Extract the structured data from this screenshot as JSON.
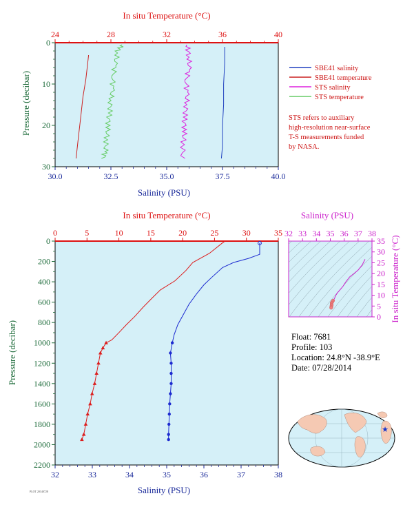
{
  "chart_data": [
    {
      "type": "line",
      "top_axis_label": "In situ Temperature (°C)",
      "bottom_axis_label": "Salinity (PSU)",
      "ylabel": "Pressure (decibar)",
      "temperature_ticks": [
        "24",
        "28",
        "32",
        "36",
        "40"
      ],
      "salinity_ticks": [
        "30.0",
        "32.5",
        "35.0",
        "37.5",
        "40.0"
      ],
      "pressure_ticks": [
        "0",
        "10",
        "20",
        "30"
      ],
      "temp_range": [
        24,
        40
      ],
      "sal_range": [
        30,
        40
      ],
      "pressure_range": [
        0,
        30
      ],
      "legend": [
        {
          "name": "SBE41 salinity",
          "color": "#1f3fbf"
        },
        {
          "name": "SBE41 temperature",
          "color": "#cc2020"
        },
        {
          "name": "STS salinity",
          "color": "#dd22dd"
        },
        {
          "name": "STS temperature",
          "color": "#66cc66"
        }
      ],
      "note": [
        "STS refers to auxiliary",
        "high-resolution near-surface",
        "T-S measurements funded",
        "by NASA."
      ],
      "series": [
        {
          "name": "SBE41 temperature",
          "axis": "temperature",
          "points": [
            [
              26.4,
              3
            ],
            [
              26.3,
              6
            ],
            [
              26.2,
              9
            ],
            [
              26.1,
              11
            ],
            [
              26.0,
              13
            ],
            [
              25.9,
              16
            ],
            [
              25.8,
              19
            ],
            [
              25.7,
              22
            ],
            [
              25.6,
              25
            ],
            [
              25.5,
              28
            ]
          ]
        },
        {
          "name": "SBE41 salinity",
          "axis": "salinity",
          "points": [
            [
              37.6,
              1
            ],
            [
              37.6,
              5
            ],
            [
              37.55,
              10
            ],
            [
              37.55,
              15
            ],
            [
              37.5,
              20
            ],
            [
              37.5,
              25
            ],
            [
              37.45,
              28
            ]
          ]
        },
        {
          "name": "STS temperature",
          "axis": "temperature",
          "points": [
            [
              28.8,
              0.5
            ],
            [
              28.5,
              2
            ],
            [
              28.3,
              5
            ],
            [
              28.2,
              8
            ],
            [
              28.1,
              11
            ],
            [
              28.0,
              14
            ],
            [
              27.9,
              17
            ],
            [
              27.8,
              20
            ],
            [
              27.7,
              23
            ],
            [
              27.6,
              26
            ],
            [
              27.5,
              28
            ]
          ]
        },
        {
          "name": "STS salinity",
          "axis": "salinity",
          "points": [
            [
              35.9,
              0.5
            ],
            [
              36.0,
              3
            ],
            [
              36.0,
              6
            ],
            [
              35.9,
              9
            ],
            [
              35.9,
              12
            ],
            [
              35.9,
              15
            ],
            [
              35.8,
              18
            ],
            [
              35.8,
              21
            ],
            [
              35.75,
              24
            ],
            [
              35.7,
              28
            ]
          ]
        }
      ]
    },
    {
      "type": "line",
      "top_axis_label": "In situ Temperature (°C)",
      "bottom_axis_label": "Salinity (PSU)",
      "ylabel": "Pressure (decibar)",
      "temperature_ticks": [
        "0",
        "5",
        "10",
        "15",
        "20",
        "25",
        "30",
        "35"
      ],
      "salinity_ticks": [
        "32",
        "33",
        "34",
        "35",
        "36",
        "37",
        "38"
      ],
      "pressure_ticks": [
        "0",
        "200",
        "400",
        "600",
        "800",
        "1000",
        "1200",
        "1400",
        "1600",
        "1800",
        "2000",
        "2200"
      ],
      "temp_range": [
        0,
        35
      ],
      "sal_range": [
        32,
        38
      ],
      "pressure_range": [
        0,
        2200
      ],
      "series": [
        {
          "name": "temperature",
          "color": "#dd1c1c",
          "points": [
            [
              26.6,
              2
            ],
            [
              26.2,
              20
            ],
            [
              24.2,
              120
            ],
            [
              21.6,
              210
            ],
            [
              20.5,
              290
            ],
            [
              18.8,
              390
            ],
            [
              16.5,
              480
            ],
            [
              15.2,
              560
            ],
            [
              13.8,
              650
            ],
            [
              12.5,
              740
            ],
            [
              11.2,
              820
            ],
            [
              10.0,
              900
            ],
            [
              8.9,
              970
            ],
            [
              8.0,
              1000
            ],
            [
              7.5,
              1050
            ],
            [
              7.1,
              1100
            ],
            [
              6.8,
              1200
            ],
            [
              6.5,
              1300
            ],
            [
              6.2,
              1400
            ],
            [
              5.8,
              1500
            ],
            [
              5.5,
              1600
            ],
            [
              5.1,
              1700
            ],
            [
              4.8,
              1800
            ],
            [
              4.5,
              1900
            ],
            [
              4.2,
              1950
            ]
          ]
        },
        {
          "name": "salinity",
          "color": "#1c2ad0",
          "points": [
            [
              37.5,
              20
            ],
            [
              37.5,
              130
            ],
            [
              37.2,
              170
            ],
            [
              36.8,
              210
            ],
            [
              36.5,
              260
            ],
            [
              36.2,
              360
            ],
            [
              36.0,
              430
            ],
            [
              35.8,
              520
            ],
            [
              35.6,
              620
            ],
            [
              35.45,
              720
            ],
            [
              35.3,
              820
            ],
            [
              35.2,
              920
            ],
            [
              35.15,
              1000
            ],
            [
              35.1,
              1100
            ],
            [
              35.12,
              1200
            ],
            [
              35.12,
              1300
            ],
            [
              35.12,
              1400
            ],
            [
              35.1,
              1500
            ],
            [
              35.08,
              1600
            ],
            [
              35.07,
              1700
            ],
            [
              35.06,
              1800
            ],
            [
              35.05,
              1900
            ],
            [
              35.05,
              1950
            ]
          ]
        }
      ]
    },
    {
      "type": "scatter",
      "top_axis_label": "Salinity (PSU)",
      "right_axis_label": "In situ Temperature (°C)",
      "salinity_ticks": [
        "32",
        "33",
        "34",
        "35",
        "36",
        "37",
        "38"
      ],
      "temperature_ticks": [
        "0",
        "5",
        "10",
        "15",
        "20",
        "25",
        "30",
        "35"
      ],
      "sal_range": [
        32,
        38
      ],
      "temp_range": [
        0,
        35
      ],
      "points": [
        [
          37.5,
          26.6
        ],
        [
          37.3,
          24
        ],
        [
          37.0,
          21.6
        ],
        [
          36.7,
          20
        ],
        [
          36.4,
          18.5
        ],
        [
          36.1,
          16
        ],
        [
          35.9,
          14
        ],
        [
          35.7,
          12.5
        ],
        [
          35.5,
          11
        ],
        [
          35.4,
          10
        ],
        [
          35.3,
          8.5
        ],
        [
          35.2,
          7.5
        ],
        [
          35.15,
          7
        ],
        [
          35.1,
          6.5
        ],
        [
          35.1,
          6
        ],
        [
          35.1,
          5.5
        ],
        [
          35.08,
          5
        ],
        [
          35.07,
          4.5
        ],
        [
          35.06,
          4.2
        ]
      ]
    }
  ],
  "info": {
    "float": "Float:  7681",
    "profile": "Profile:  103",
    "location": "Location:  24.8°N  -38.9°E",
    "date": "Date:  07/28/2014"
  },
  "footer": "PLOT 20140728"
}
